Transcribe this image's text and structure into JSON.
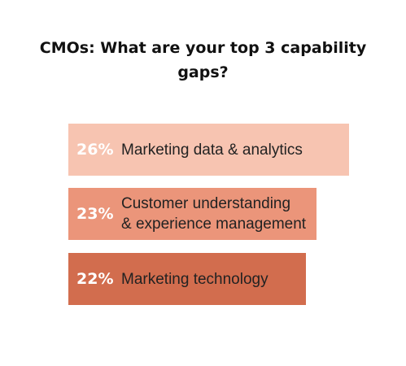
{
  "title_lines": [
    "CMOs: What are your top 3 capability",
    "gaps?"
  ],
  "bar_colors": [
    "#f7c4b1",
    "#eb957a",
    "#d26d4e"
  ],
  "chart_data": {
    "type": "bar",
    "title": "CMOs: What are your top 3 capability gaps?",
    "orientation": "horizontal",
    "categories": [
      "Marketing data & analytics",
      "Customer understanding & experience management",
      "Marketing technology"
    ],
    "values": [
      26,
      23,
      22
    ],
    "value_labels": [
      "26%",
      "23%",
      "22%"
    ],
    "label_lines": [
      [
        "Marketing data & analytics"
      ],
      [
        "Customer understanding",
        "& experience management"
      ],
      [
        "Marketing technology"
      ]
    ],
    "unit": "%",
    "grid": false,
    "legend": "none"
  }
}
